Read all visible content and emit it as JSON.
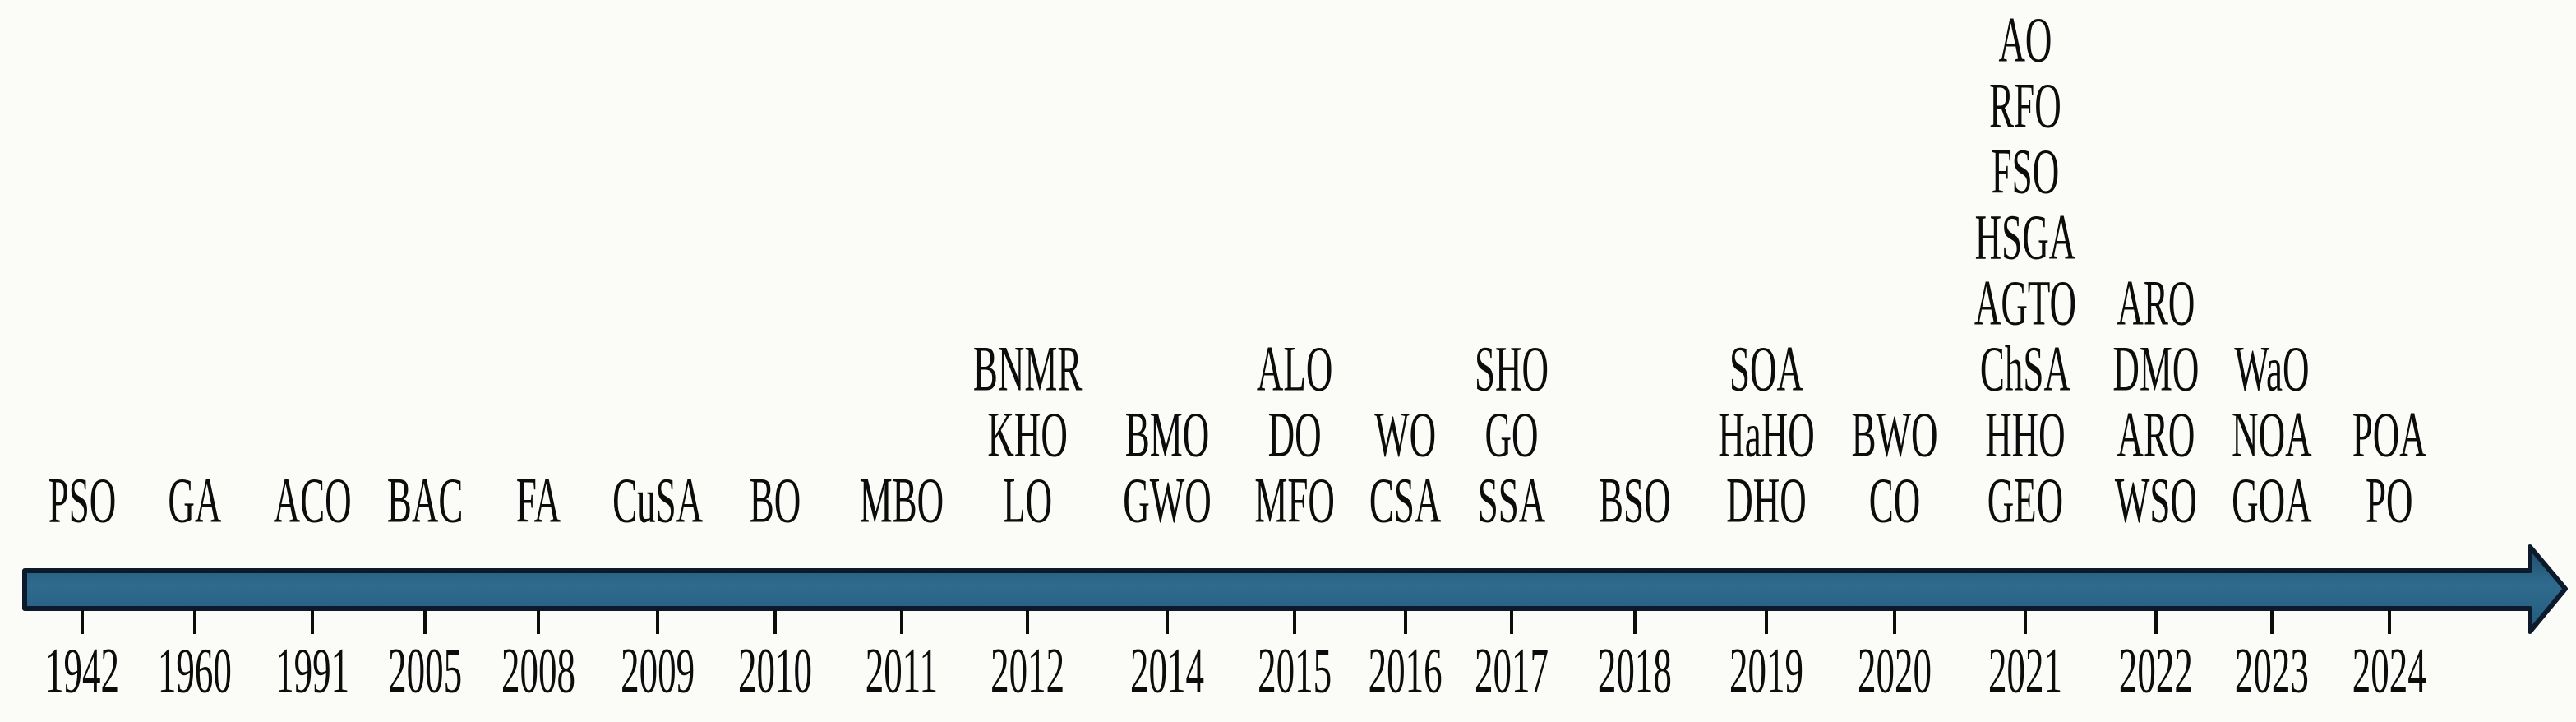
{
  "timeline": {
    "ink_color": "#0c0c0c",
    "background_color": "#fbfbf8",
    "arrow_fill_gradient": [
      "#1e4d6b",
      "#2f6b8e",
      "#235a7c"
    ],
    "arrow_border_color": "#0c1a2c",
    "items": [
      {
        "year": "1942",
        "x_pct": 3.19,
        "algorithms": [
          "PSO"
        ]
      },
      {
        "year": "1960",
        "x_pct": 7.56,
        "algorithms": [
          "GA"
        ]
      },
      {
        "year": "1991",
        "x_pct": 12.13,
        "algorithms": [
          "ACO"
        ]
      },
      {
        "year": "2005",
        "x_pct": 16.5,
        "algorithms": [
          "BAC"
        ]
      },
      {
        "year": "2008",
        "x_pct": 20.9,
        "algorithms": [
          "FA"
        ]
      },
      {
        "year": "2009",
        "x_pct": 25.53,
        "algorithms": [
          "CuSA"
        ]
      },
      {
        "year": "2010",
        "x_pct": 30.09,
        "algorithms": [
          "BO"
        ]
      },
      {
        "year": "2011",
        "x_pct": 35.0,
        "algorithms": [
          "MBO"
        ]
      },
      {
        "year": "2012",
        "x_pct": 39.89,
        "algorithms": [
          "BNMR",
          "KHO",
          "LO"
        ]
      },
      {
        "year": "2014",
        "x_pct": 45.31,
        "algorithms": [
          "BMO",
          "GWO"
        ]
      },
      {
        "year": "2015",
        "x_pct": 50.26,
        "algorithms": [
          "ALO",
          "DO",
          "MFO"
        ]
      },
      {
        "year": "2016",
        "x_pct": 54.55,
        "algorithms": [
          "WO",
          "CSA"
        ]
      },
      {
        "year": "2017",
        "x_pct": 58.68,
        "algorithms": [
          "SHO",
          "GO",
          "SSA"
        ]
      },
      {
        "year": "2018",
        "x_pct": 63.46,
        "algorithms": [
          "BSO"
        ]
      },
      {
        "year": "2019",
        "x_pct": 68.57,
        "algorithms": [
          "SOA",
          "HaHO",
          "DHO"
        ]
      },
      {
        "year": "2020",
        "x_pct": 73.55,
        "algorithms": [
          "BWO",
          "CO"
        ]
      },
      {
        "year": "2021",
        "x_pct": 78.62,
        "algorithms": [
          "AO",
          "RFO",
          "FSO",
          "HSGA",
          "AGTO",
          "ChSA",
          "HHO",
          "GEO"
        ]
      },
      {
        "year": "2022",
        "x_pct": 83.69,
        "algorithms": [
          "ARO",
          "DMO",
          "ARO",
          "WSO"
        ]
      },
      {
        "year": "2023",
        "x_pct": 88.19,
        "algorithms": [
          "WaO",
          "NOA",
          "GOA"
        ]
      },
      {
        "year": "2024",
        "x_pct": 92.75,
        "algorithms": [
          "POA",
          "PO"
        ]
      }
    ]
  }
}
